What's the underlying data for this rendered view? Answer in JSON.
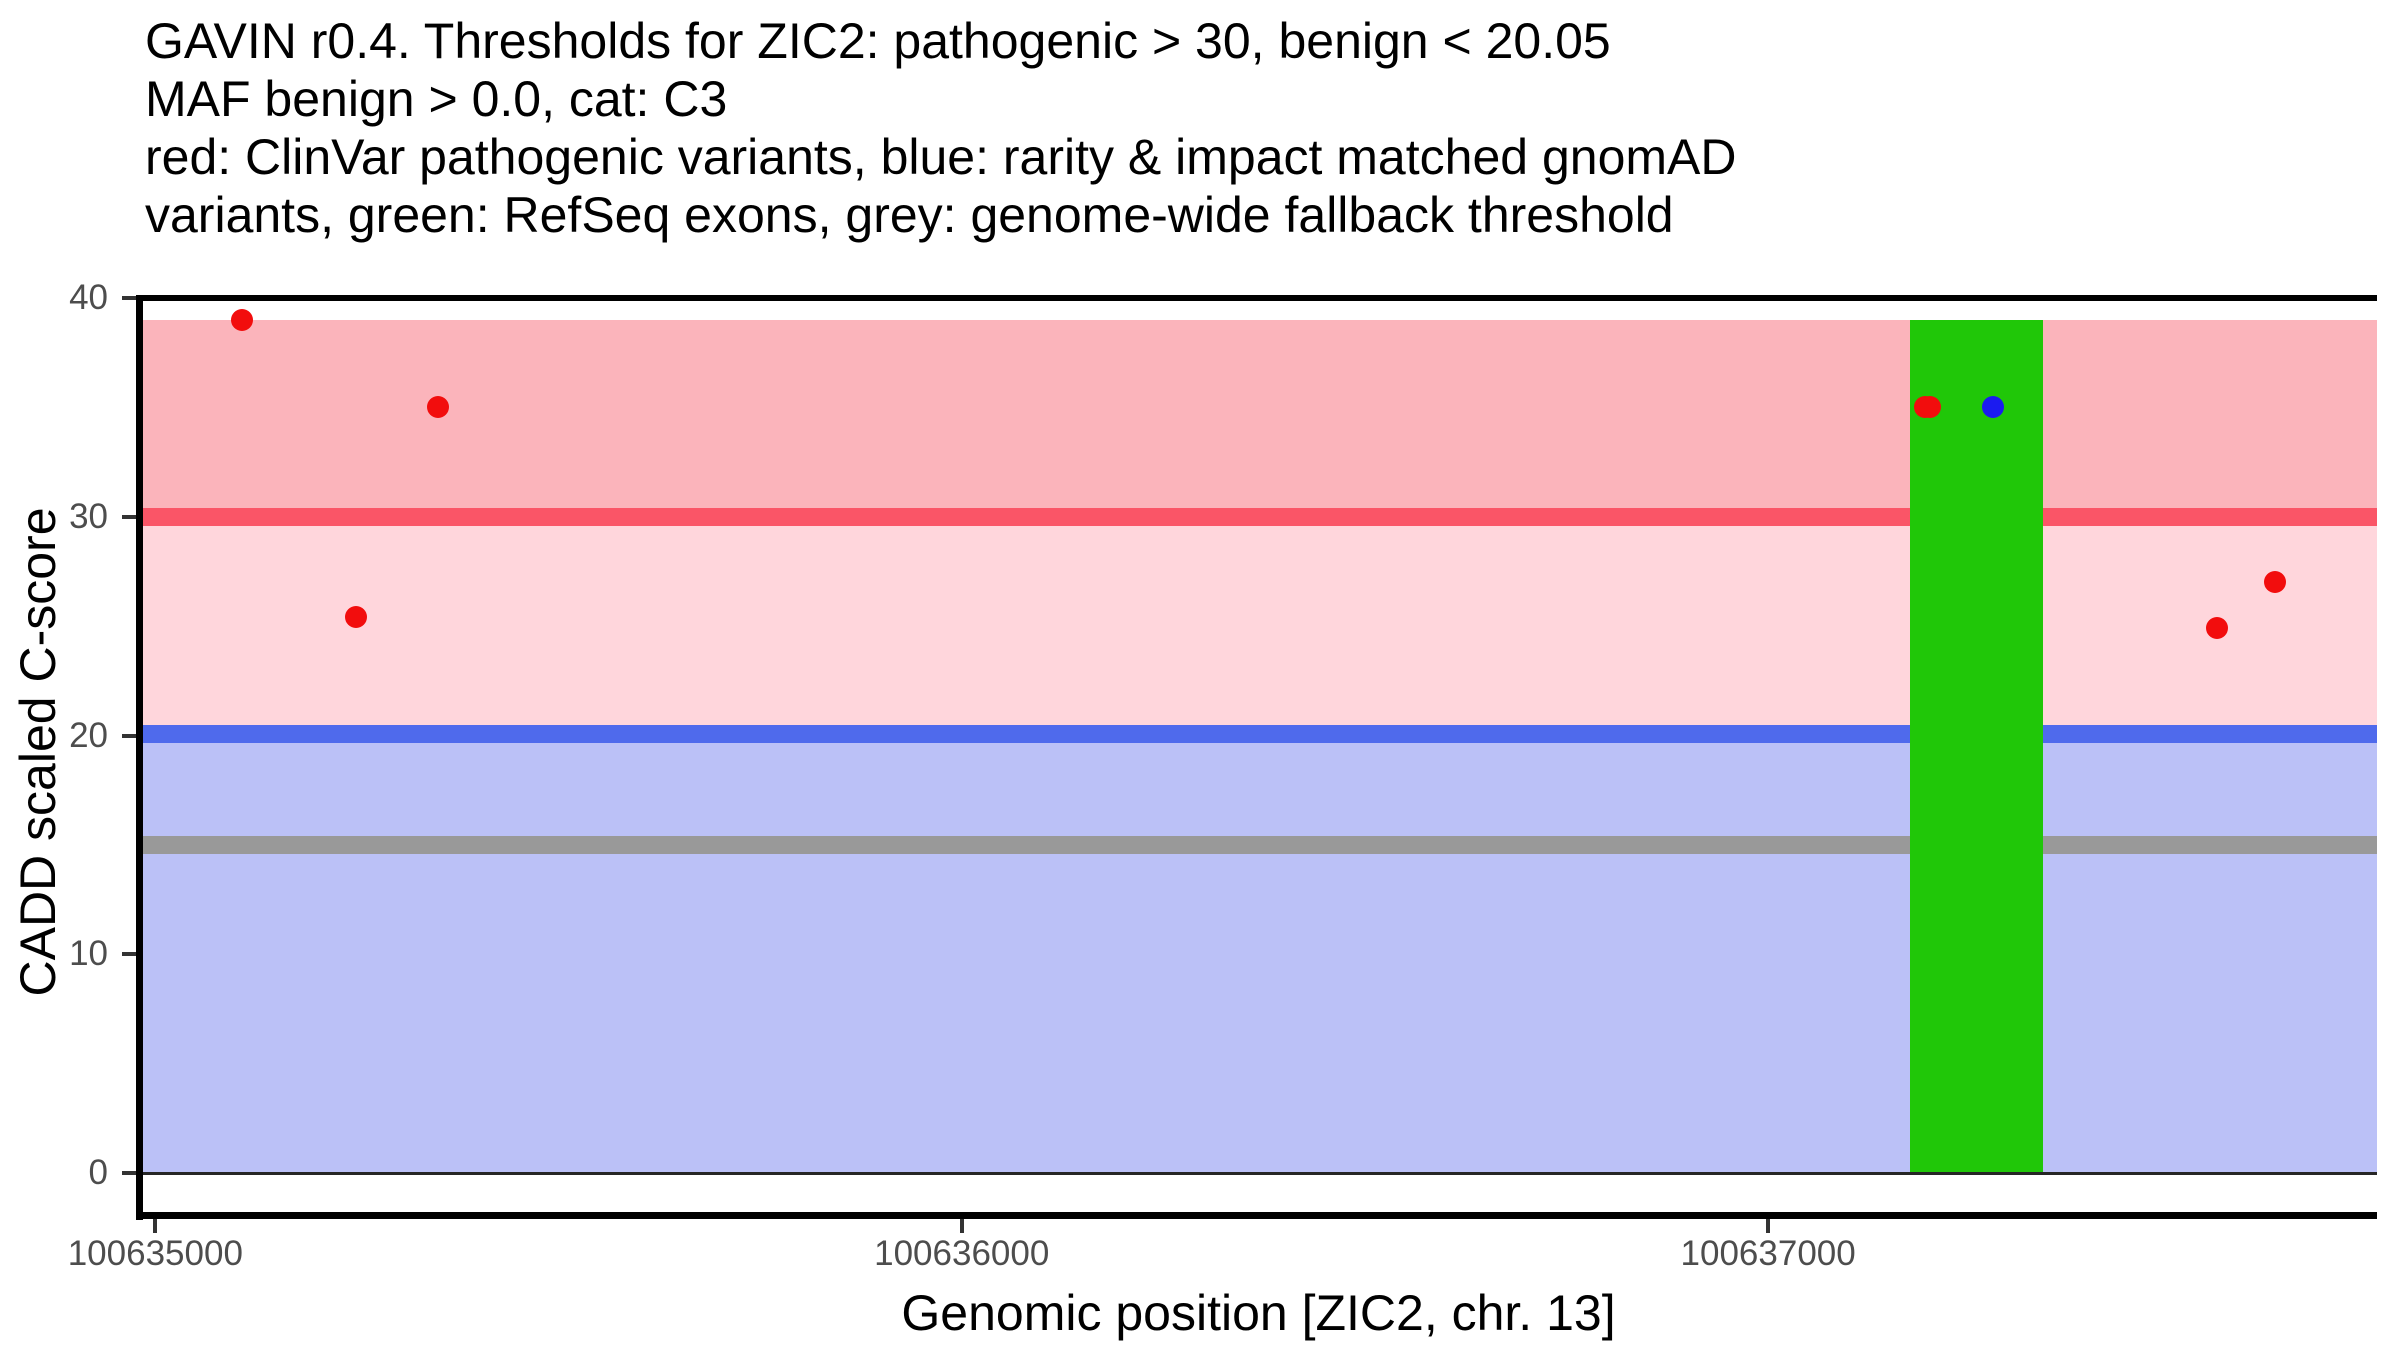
{
  "chart_data": {
    "type": "scatter",
    "title_lines": [
      "GAVIN r0.4. Thresholds for ZIC2: pathogenic > 30, benign < 20.05",
      "MAF benign > 0.0, cat: C3",
      "red: ClinVar pathogenic variants, blue: rarity & impact matched gnomAD",
      "variants, green: RefSeq exons, grey: genome-wide fallback threshold"
    ],
    "xlabel": "Genomic position [ZIC2, chr. 13]",
    "ylabel": "CADD scaled C-score",
    "x_ticks": [
      100635000,
      100636000,
      100637000
    ],
    "y_ticks": [
      0,
      10,
      20,
      30,
      40
    ],
    "xlim": [
      100634981,
      100637755
    ],
    "ylim": [
      -2,
      40
    ],
    "grid": false,
    "legend": false,
    "thresholds": {
      "pathogenic": 30,
      "benign": 20.05,
      "genome_wide_fallback": 15
    },
    "regions": [
      {
        "name": "pathogenic-region",
        "y0": 30,
        "y1": 39,
        "color": "#FBB4BB"
      },
      {
        "name": "intermediate-region",
        "y0": 20.05,
        "y1": 30,
        "color": "#FFD6DC"
      },
      {
        "name": "benign-region",
        "y0": 0,
        "y1": 20.05,
        "color": "#BBC1F7"
      }
    ],
    "threshold_lines": [
      {
        "name": "pathogenic-threshold-line",
        "y": 30,
        "color": "#FA5567"
      },
      {
        "name": "benign-threshold-line",
        "y": 20.05,
        "color": "#4F6AEC"
      },
      {
        "name": "genome-wide-fallback-threshold-line",
        "y": 15,
        "color": "#999999"
      }
    ],
    "baseline": {
      "y": 0,
      "color": "#262626"
    },
    "exons": [
      {
        "name": "refseq-exon",
        "start": 100637176,
        "end": 100637341,
        "y0": 0,
        "y1": 39,
        "color": "#20C708"
      }
    ],
    "series": [
      {
        "name": "ClinVar pathogenic variants",
        "color": "#F20D0D",
        "points": [
          [
            100635108,
            39
          ],
          [
            100635249,
            25.4
          ],
          [
            100635351,
            35
          ],
          [
            100637194,
            35
          ],
          [
            100637201,
            35
          ],
          [
            100637557,
            24.9
          ],
          [
            100637629,
            27
          ]
        ]
      },
      {
        "name": "rarity & impact matched gnomAD variants",
        "color": "#1B1BF0",
        "points": [
          [
            100637279,
            35
          ]
        ]
      }
    ]
  },
  "colors": {
    "background": "#FFFFFF",
    "title_text": "#000000",
    "axis_text": "#4D4D4D",
    "axis_line": "#000000",
    "tick_mark": "#333333"
  }
}
